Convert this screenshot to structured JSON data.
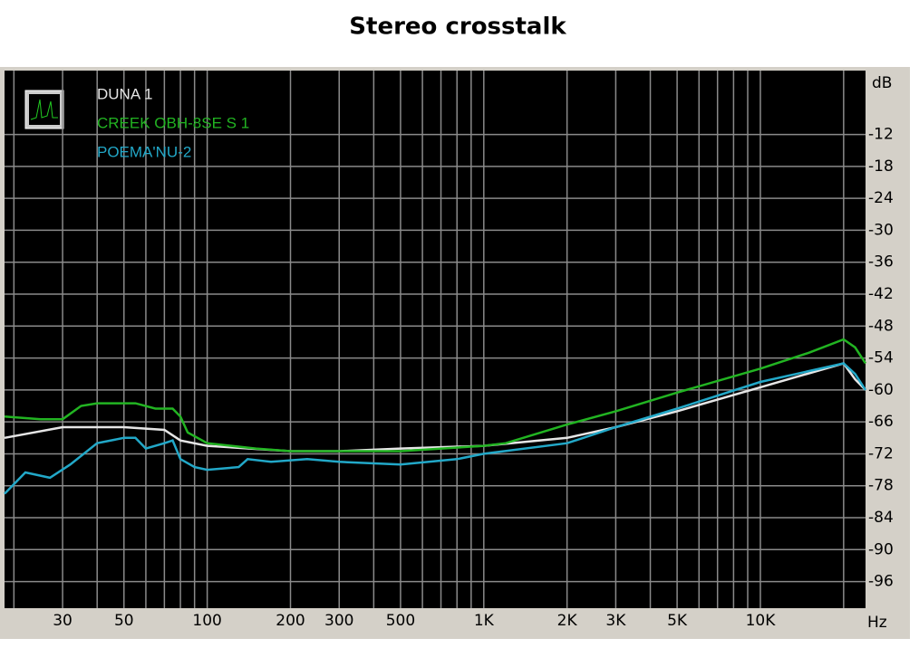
{
  "chart_data": {
    "type": "line",
    "title": "Stereo crosstalk",
    "y_unit": "dB",
    "x_unit": "Hz",
    "xscale": "log",
    "xlim": [
      18.5,
      24000
    ],
    "xticks": [
      {
        "value": 30,
        "label": "30"
      },
      {
        "value": 50,
        "label": "50"
      },
      {
        "value": 100,
        "label": "100"
      },
      {
        "value": 200,
        "label": "200"
      },
      {
        "value": 300,
        "label": "300"
      },
      {
        "value": 500,
        "label": "500"
      },
      {
        "value": 1000,
        "label": "1K"
      },
      {
        "value": 2000,
        "label": "2K"
      },
      {
        "value": 3000,
        "label": "3K"
      },
      {
        "value": 5000,
        "label": "5K"
      },
      {
        "value": 10000,
        "label": "10K"
      }
    ],
    "xgrid": [
      20,
      30,
      40,
      50,
      60,
      70,
      80,
      90,
      100,
      200,
      300,
      400,
      500,
      600,
      700,
      800,
      900,
      1000,
      2000,
      3000,
      4000,
      5000,
      6000,
      7000,
      8000,
      9000,
      10000,
      20000
    ],
    "ylim": [
      -101,
      0
    ],
    "yticks": [
      -12,
      -18,
      -24,
      -30,
      -36,
      -42,
      -48,
      -54,
      -60,
      -66,
      -72,
      -78,
      -84,
      -90,
      -96
    ],
    "grid": true,
    "series": [
      {
        "name": "DUNA 1",
        "color": "#e6e6e6",
        "x": [
          18.5,
          30,
          50,
          70,
          80,
          100,
          200,
          300,
          500,
          1000,
          2000,
          3000,
          5000,
          10000,
          20000,
          22000,
          24000
        ],
        "values": [
          -69,
          -67,
          -67,
          -67.5,
          -69.5,
          -70.5,
          -71.5,
          -71.5,
          -71,
          -70.5,
          -69,
          -67,
          -64,
          -59.5,
          -55,
          -58,
          -60
        ]
      },
      {
        "name": "CREEK OBH-8SE S 1",
        "color": "#22b422",
        "x": [
          18.5,
          25,
          30,
          35,
          40,
          55,
          65,
          75,
          80,
          85,
          100,
          150,
          200,
          500,
          1000,
          1200,
          2000,
          3000,
          5000,
          10000,
          15000,
          20000,
          22000,
          24000
        ],
        "values": [
          -65,
          -65.5,
          -65.5,
          -63,
          -62.5,
          -62.5,
          -63.5,
          -63.5,
          -65,
          -68,
          -70,
          -71,
          -71.5,
          -71.5,
          -70.5,
          -70,
          -66.5,
          -64,
          -60.5,
          -56,
          -53,
          -50.5,
          -52,
          -55
        ]
      },
      {
        "name": "POEMA'NU-2",
        "color": "#22a8c8",
        "x": [
          18.5,
          22,
          27,
          32,
          40,
          50,
          55,
          60,
          70,
          75,
          80,
          90,
          100,
          130,
          140,
          170,
          230,
          300,
          500,
          800,
          1000,
          2000,
          3000,
          5000,
          10000,
          20000,
          22000,
          24000
        ],
        "values": [
          -79.5,
          -75.5,
          -76.5,
          -74,
          -70,
          -69,
          -69,
          -71,
          -70,
          -69.5,
          -73,
          -74.5,
          -75,
          -74.5,
          -73,
          -73.5,
          -73,
          -73.5,
          -74,
          -73,
          -72,
          -70,
          -67,
          -63.5,
          -58.5,
          -55,
          -57,
          -60
        ]
      }
    ]
  }
}
